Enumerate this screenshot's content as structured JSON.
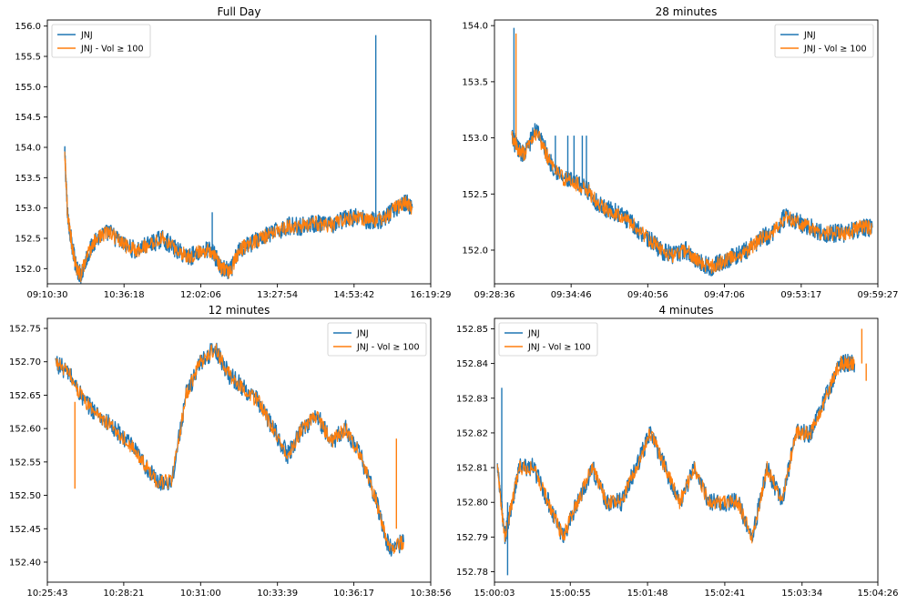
{
  "colors": {
    "series1": "#1f77b4",
    "series2": "#ff7f0e",
    "axis": "#000000",
    "background": "#ffffff"
  },
  "chart_data": [
    {
      "type": "line",
      "title": "Full Day",
      "xlabel": "",
      "ylabel": "",
      "grid": false,
      "legend_position": "top-left",
      "x_ticks": [
        "09:10:30",
        "10:36:18",
        "12:02:06",
        "13:27:54",
        "14:53:42",
        "16:19:29"
      ],
      "y_ticks": [
        "152.0",
        "152.5",
        "153.0",
        "153.5",
        "154.0",
        "154.5",
        "155.0",
        "155.5",
        "156.0"
      ],
      "ylim": [
        151.75,
        156.1
      ],
      "x": [
        "09:30",
        "09:33",
        "09:38",
        "09:43",
        "09:48",
        "09:55",
        "10:05",
        "10:20",
        "10:35",
        "10:50",
        "11:05",
        "11:20",
        "11:35",
        "11:50",
        "12:05",
        "12:15",
        "12:25",
        "12:35",
        "12:45",
        "12:55",
        "13:10",
        "13:25",
        "13:40",
        "13:55",
        "14:10",
        "14:25",
        "14:40",
        "14:55",
        "15:10",
        "15:25",
        "15:40",
        "15:50",
        "15:59"
      ],
      "series": [
        {
          "name": "JNJ",
          "values": [
            153.9,
            152.9,
            152.4,
            152.0,
            151.9,
            152.2,
            152.5,
            152.6,
            152.4,
            152.3,
            152.4,
            152.5,
            152.3,
            152.2,
            152.3,
            152.3,
            152.0,
            151.95,
            152.3,
            152.4,
            152.5,
            152.6,
            152.7,
            152.7,
            152.75,
            152.7,
            152.8,
            152.85,
            152.8,
            152.8,
            153.0,
            153.1,
            153.0
          ]
        },
        {
          "name": "JNJ - Vol ≥ 100",
          "values": [
            153.9,
            152.9,
            152.4,
            152.0,
            151.9,
            152.2,
            152.5,
            152.6,
            152.4,
            152.3,
            152.4,
            152.5,
            152.3,
            152.2,
            152.3,
            152.3,
            152.0,
            151.95,
            152.3,
            152.4,
            152.5,
            152.6,
            152.7,
            152.7,
            152.75,
            152.7,
            152.8,
            152.85,
            152.8,
            152.8,
            153.0,
            153.1,
            153.0
          ]
        }
      ],
      "spikes": [
        {
          "series": "JNJ",
          "x": "12:15",
          "from": 152.3,
          "to": 152.93
        },
        {
          "series": "JNJ",
          "x": "15:18",
          "from": 152.85,
          "to": 155.85
        }
      ]
    },
    {
      "type": "line",
      "title": "28 minutes",
      "xlabel": "",
      "ylabel": "",
      "grid": false,
      "legend_position": "top-right",
      "x_ticks": [
        "09:28:36",
        "09:34:46",
        "09:40:56",
        "09:47:06",
        "09:53:17",
        "09:59:27"
      ],
      "y_ticks": [
        "152.0",
        "152.5",
        "153.0",
        "153.5",
        "154.0"
      ],
      "ylim": [
        151.7,
        154.05
      ],
      "x": [
        "09:30:00",
        "09:30:30",
        "09:31:00",
        "09:32:00",
        "09:33:00",
        "09:34:00",
        "09:35:00",
        "09:36:00",
        "09:37:00",
        "09:38:00",
        "09:39:00",
        "09:40:00",
        "09:41:00",
        "09:42:00",
        "09:43:00",
        "09:44:00",
        "09:45:00",
        "09:46:00",
        "09:47:00",
        "09:48:00",
        "09:49:00",
        "09:50:00",
        "09:51:00",
        "09:52:00",
        "09:53:00",
        "09:54:00",
        "09:55:00",
        "09:56:00",
        "09:57:00",
        "09:58:00",
        "09:59:00"
      ],
      "series": [
        {
          "name": "JNJ",
          "values": [
            153.0,
            152.9,
            152.85,
            153.1,
            152.8,
            152.65,
            152.6,
            152.55,
            152.4,
            152.35,
            152.3,
            152.2,
            152.1,
            152.0,
            151.95,
            152.0,
            151.9,
            151.85,
            151.9,
            151.95,
            152.0,
            152.1,
            152.15,
            152.3,
            152.25,
            152.2,
            152.15,
            152.15,
            152.15,
            152.2,
            152.2
          ]
        },
        {
          "name": "JNJ - Vol ≥ 100",
          "values": [
            153.0,
            152.9,
            152.85,
            153.05,
            152.8,
            152.65,
            152.6,
            152.55,
            152.4,
            152.35,
            152.3,
            152.2,
            152.1,
            152.0,
            151.95,
            152.0,
            151.9,
            151.85,
            151.9,
            151.95,
            152.0,
            152.1,
            152.15,
            152.3,
            152.25,
            152.2,
            152.15,
            152.15,
            152.15,
            152.2,
            152.2
          ]
        }
      ],
      "spikes": [
        {
          "series": "JNJ",
          "x": "09:30:10",
          "from": 153.0,
          "to": 153.98
        },
        {
          "series": "JNJ - Vol ≥ 100",
          "x": "09:30:20",
          "from": 153.0,
          "to": 153.93
        },
        {
          "series": "JNJ",
          "x": "09:33:30",
          "from": 152.7,
          "to": 153.02
        },
        {
          "series": "JNJ",
          "x": "09:34:30",
          "from": 152.65,
          "to": 153.02
        },
        {
          "series": "JNJ",
          "x": "09:35:00",
          "from": 152.6,
          "to": 153.02
        },
        {
          "series": "JNJ",
          "x": "09:35:40",
          "from": 152.55,
          "to": 153.02
        },
        {
          "series": "JNJ",
          "x": "09:36:00",
          "from": 152.55,
          "to": 153.02
        }
      ]
    },
    {
      "type": "line",
      "title": "12 minutes",
      "xlabel": "",
      "ylabel": "",
      "grid": false,
      "legend_position": "top-right",
      "x_ticks": [
        "10:25:43",
        "10:28:21",
        "10:31:00",
        "10:33:39",
        "10:36:17",
        "10:38:56"
      ],
      "y_ticks": [
        "152.40",
        "152.45",
        "152.50",
        "152.55",
        "152.60",
        "152.65",
        "152.70",
        "152.75"
      ],
      "ylim": [
        152.37,
        152.765
      ],
      "x": [
        "10:26:00",
        "10:26:30",
        "10:27:00",
        "10:27:30",
        "10:28:00",
        "10:28:30",
        "10:29:00",
        "10:29:30",
        "10:30:00",
        "10:30:30",
        "10:31:00",
        "10:31:30",
        "10:32:00",
        "10:32:30",
        "10:33:00",
        "10:33:30",
        "10:34:00",
        "10:34:30",
        "10:35:00",
        "10:35:30",
        "10:36:00",
        "10:36:30",
        "10:37:00",
        "10:37:30",
        "10:38:00"
      ],
      "series": [
        {
          "name": "JNJ",
          "values": [
            152.7,
            152.68,
            152.64,
            152.62,
            152.6,
            152.58,
            152.55,
            152.52,
            152.52,
            152.65,
            152.7,
            152.72,
            152.68,
            152.66,
            152.64,
            152.6,
            152.56,
            152.6,
            152.62,
            152.58,
            152.6,
            152.56,
            152.5,
            152.42,
            152.43
          ]
        },
        {
          "name": "JNJ - Vol ≥ 100",
          "values": [
            152.7,
            152.68,
            152.64,
            152.62,
            152.6,
            152.58,
            152.55,
            152.52,
            152.52,
            152.65,
            152.7,
            152.72,
            152.68,
            152.66,
            152.64,
            152.6,
            152.56,
            152.6,
            152.62,
            152.58,
            152.6,
            152.56,
            152.5,
            152.42,
            152.43
          ]
        }
      ],
      "spikes": [
        {
          "series": "JNJ - Vol ≥ 100",
          "x": "10:26:40",
          "from": 152.64,
          "to": 152.51
        },
        {
          "series": "JNJ - Vol ≥ 100",
          "x": "10:37:45",
          "from": 152.45,
          "to": 152.585
        }
      ]
    },
    {
      "type": "line",
      "title": "4 minutes",
      "xlabel": "",
      "ylabel": "",
      "grid": false,
      "legend_position": "top-left",
      "x_ticks": [
        "15:00:03",
        "15:00:55",
        "15:01:48",
        "15:02:41",
        "15:03:34",
        "15:04:26"
      ],
      "y_ticks": [
        "152.78",
        "152.79",
        "152.80",
        "152.81",
        "152.82",
        "152.83",
        "152.84",
        "152.85"
      ],
      "ylim": [
        152.777,
        152.853
      ],
      "x": [
        "15:00:05",
        "15:00:10",
        "15:00:15",
        "15:00:20",
        "15:00:30",
        "15:00:40",
        "15:00:50",
        "15:01:00",
        "15:01:10",
        "15:01:20",
        "15:01:30",
        "15:01:40",
        "15:01:50",
        "15:02:00",
        "15:02:10",
        "15:02:20",
        "15:02:30",
        "15:02:40",
        "15:02:50",
        "15:03:00",
        "15:03:10",
        "15:03:20",
        "15:03:30",
        "15:03:40",
        "15:03:50",
        "15:04:00",
        "15:04:05",
        "15:04:10"
      ],
      "series": [
        {
          "name": "JNJ",
          "values": [
            152.81,
            152.79,
            152.8,
            152.81,
            152.81,
            152.8,
            152.79,
            152.8,
            152.81,
            152.8,
            152.8,
            152.81,
            152.82,
            152.81,
            152.8,
            152.81,
            152.8,
            152.8,
            152.8,
            152.79,
            152.81,
            152.8,
            152.82,
            152.82,
            152.83,
            152.84,
            152.84,
            152.84
          ]
        },
        {
          "name": "JNJ - Vol ≥ 100",
          "values": [
            152.81,
            152.79,
            152.8,
            152.81,
            152.81,
            152.8,
            152.79,
            152.8,
            152.81,
            152.8,
            152.8,
            152.81,
            152.82,
            152.81,
            152.8,
            152.81,
            152.8,
            152.8,
            152.8,
            152.79,
            152.81,
            152.8,
            152.82,
            152.82,
            152.83,
            152.84,
            152.84,
            152.84
          ]
        }
      ],
      "spikes": [
        {
          "series": "JNJ",
          "x": "15:00:08",
          "from": 152.8,
          "to": 152.833
        },
        {
          "series": "JNJ",
          "x": "15:00:12",
          "from": 152.8,
          "to": 152.779
        },
        {
          "series": "JNJ - Vol ≥ 100",
          "x": "15:04:15",
          "from": 152.84,
          "to": 152.85
        },
        {
          "series": "JNJ - Vol ≥ 100",
          "x": "15:04:18",
          "from": 152.84,
          "to": 152.835
        }
      ]
    }
  ]
}
